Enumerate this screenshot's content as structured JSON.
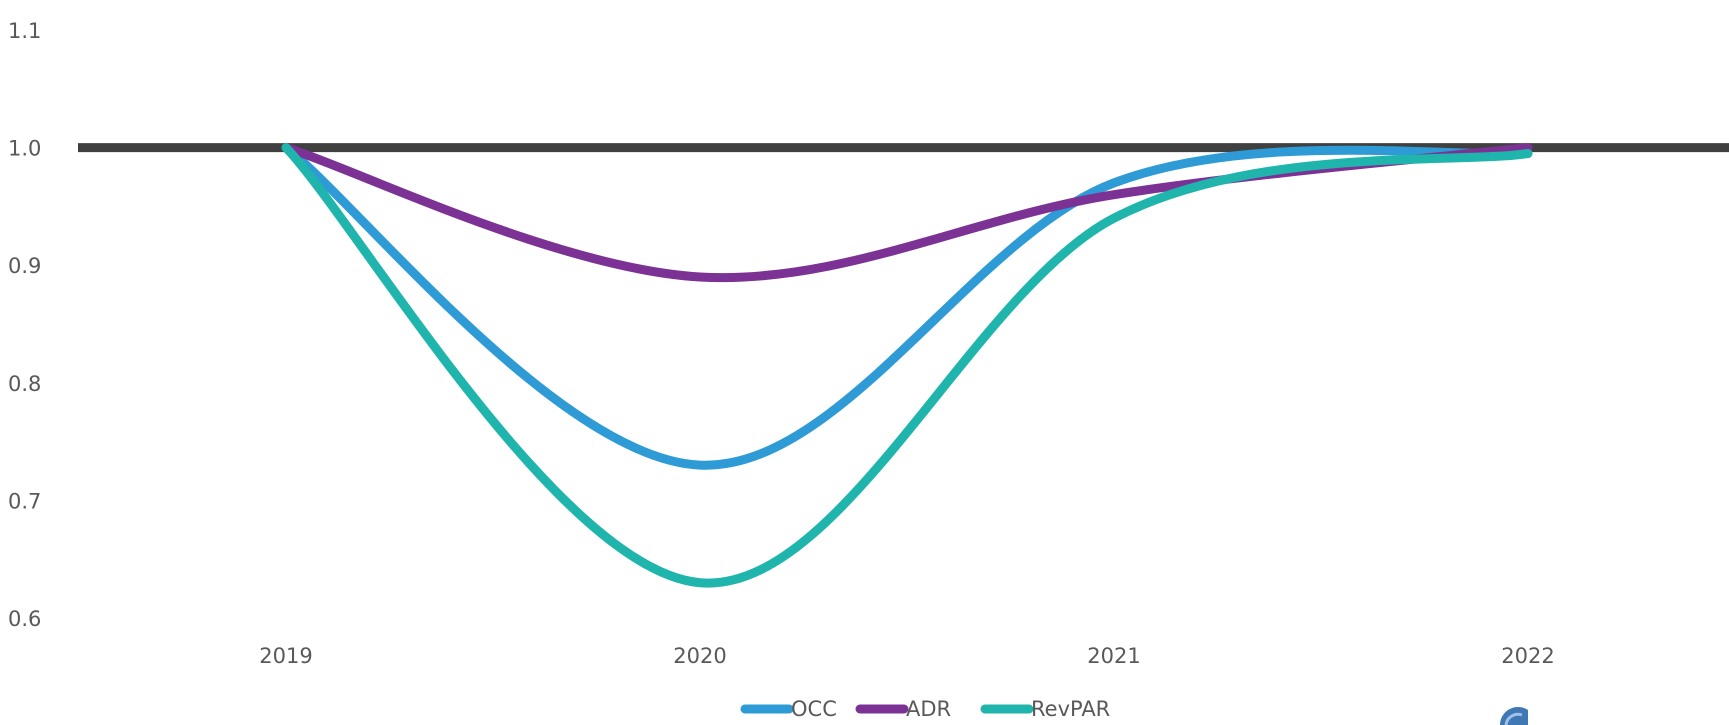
{
  "chart_data": {
    "type": "line",
    "title": "",
    "xlabel": "",
    "ylabel": "",
    "categories": [
      "2019",
      "2020",
      "2021",
      "2022"
    ],
    "ylim": [
      0.6,
      1.1
    ],
    "yticks": [
      "0.6",
      "0.7",
      "0.8",
      "0.9",
      "1.0",
      "1.1"
    ],
    "smooth": true,
    "grid": false,
    "reference_line": {
      "y": 1.0,
      "color": "#404040"
    },
    "legend_position": "bottom",
    "series": [
      {
        "name": "OCC",
        "color": "#2E9BD6",
        "values": [
          1.0,
          0.73,
          0.97,
          0.995
        ]
      },
      {
        "name": "ADR",
        "color": "#7B3294",
        "values": [
          1.0,
          0.89,
          0.96,
          1.0
        ]
      },
      {
        "name": "RevPAR",
        "color": "#1FB5AD",
        "values": [
          1.0,
          0.63,
          0.94,
          0.995
        ]
      }
    ]
  }
}
